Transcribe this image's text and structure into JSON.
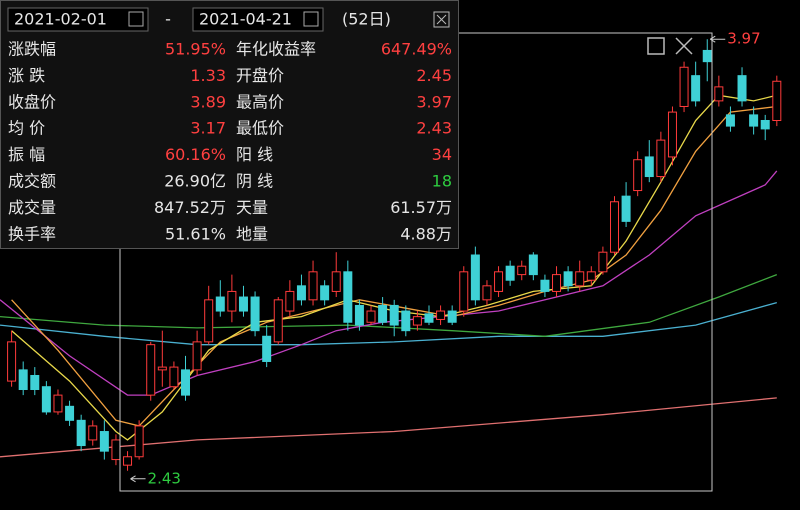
{
  "panel": {
    "start_date": "2021-02-01",
    "separator": "-",
    "end_date": "2021-04-21",
    "days": "(52日)",
    "rows": [
      [
        "涨跌幅",
        "51.95%",
        "年化收益率",
        "647.49%"
      ],
      [
        "涨 跌",
        "1.33",
        "开盘价",
        "2.45"
      ],
      [
        "收盘价",
        "3.89",
        "最高价",
        "3.97"
      ],
      [
        "均 价",
        "3.17",
        "最低价",
        "2.43"
      ],
      [
        "振 幅",
        "60.16%",
        "阳 线",
        "34"
      ],
      [
        "成交额",
        "26.90亿",
        "阴 线",
        "18"
      ],
      [
        "成交量",
        "847.52万",
        "天量",
        "61.57万"
      ],
      [
        "换手率",
        "51.61%",
        "地量",
        "4.88万"
      ]
    ],
    "value_colors": [
      [
        "#ff4040",
        "#ff4040"
      ],
      [
        "#ff4040",
        "#ff4040"
      ],
      [
        "#ff4040",
        "#ff4040"
      ],
      [
        "#ff4040",
        "#ff4040"
      ],
      [
        "#ff4040",
        "#ff4040"
      ],
      [
        "#e6e6e6",
        "#2ecc40"
      ],
      [
        "#e6e6e6",
        "#e6e6e6"
      ],
      [
        "#e6e6e6",
        "#e6e6e6"
      ]
    ]
  },
  "chart_data": {
    "type": "candlestick",
    "up_color": "#ff3b3b",
    "down_color": "#3fd1d6",
    "xlim": [
      -1,
      68
    ],
    "ylim": [
      2.29,
      4.11
    ],
    "open": [
      2.75,
      2.79,
      2.77,
      2.73,
      2.64,
      2.66,
      2.61,
      2.54,
      2.57,
      2.47,
      2.45,
      2.48,
      2.7,
      2.79,
      2.73,
      2.79,
      2.79,
      2.89,
      3.05,
      3.0,
      3.05,
      3.05,
      2.91,
      2.89,
      3.0,
      3.09,
      3.04,
      3.09,
      3.07,
      3.14,
      3.02,
      2.96,
      3.02,
      3.02,
      3.0,
      2.95,
      2.99,
      2.97,
      3.0,
      3.0,
      3.2,
      3.04,
      3.07,
      3.16,
      3.13,
      3.2,
      3.11,
      3.07,
      3.14,
      3.09,
      3.11,
      3.14,
      3.21,
      3.41,
      3.43,
      3.55,
      3.48,
      3.55,
      3.73,
      3.84,
      3.93,
      3.75,
      3.7,
      3.84,
      3.7,
      3.68,
      3.68
    ],
    "high": [
      2.93,
      2.82,
      2.8,
      2.75,
      2.72,
      2.68,
      2.63,
      2.61,
      2.61,
      2.56,
      2.5,
      2.61,
      2.89,
      2.93,
      2.82,
      2.84,
      2.93,
      3.09,
      3.11,
      3.13,
      3.09,
      3.07,
      2.95,
      3.05,
      3.11,
      3.13,
      3.18,
      3.11,
      3.21,
      3.18,
      3.04,
      3.02,
      3.05,
      3.04,
      3.02,
      3.0,
      3.02,
      3.02,
      3.02,
      3.16,
      3.23,
      3.11,
      3.16,
      3.18,
      3.18,
      3.21,
      3.13,
      3.16,
      3.16,
      3.18,
      3.16,
      3.23,
      3.41,
      3.46,
      3.57,
      3.61,
      3.64,
      3.73,
      3.89,
      3.89,
      3.97,
      3.84,
      3.73,
      3.87,
      3.73,
      3.7,
      3.84
    ],
    "low": [
      2.73,
      2.7,
      2.7,
      2.63,
      2.63,
      2.59,
      2.5,
      2.52,
      2.47,
      2.45,
      2.43,
      2.47,
      2.68,
      2.73,
      2.72,
      2.68,
      2.77,
      2.88,
      2.98,
      2.96,
      2.98,
      2.91,
      2.8,
      2.88,
      2.98,
      3.02,
      3.02,
      3.02,
      3.05,
      2.93,
      2.93,
      2.95,
      2.95,
      2.91,
      2.91,
      2.93,
      2.95,
      2.95,
      2.95,
      2.98,
      3.02,
      3.02,
      3.05,
      3.09,
      3.11,
      3.11,
      3.05,
      3.05,
      3.07,
      3.07,
      3.09,
      3.13,
      3.2,
      3.3,
      3.41,
      3.46,
      3.46,
      3.52,
      3.71,
      3.73,
      3.82,
      3.73,
      3.64,
      3.73,
      3.63,
      3.61,
      3.66
    ],
    "close": [
      2.89,
      2.72,
      2.72,
      2.64,
      2.7,
      2.61,
      2.52,
      2.59,
      2.5,
      2.54,
      2.48,
      2.59,
      2.88,
      2.8,
      2.8,
      2.7,
      2.89,
      3.04,
      3.0,
      3.07,
      3.0,
      2.93,
      2.82,
      3.04,
      3.07,
      3.04,
      3.14,
      3.04,
      3.14,
      2.96,
      2.95,
      3.0,
      2.96,
      2.95,
      2.93,
      2.98,
      2.96,
      3.0,
      2.96,
      3.14,
      3.04,
      3.09,
      3.14,
      3.11,
      3.16,
      3.13,
      3.07,
      3.13,
      3.09,
      3.14,
      3.14,
      3.21,
      3.39,
      3.32,
      3.54,
      3.48,
      3.61,
      3.71,
      3.87,
      3.75,
      3.89,
      3.8,
      3.66,
      3.75,
      3.66,
      3.65,
      3.82
    ],
    "lines": [
      {
        "color": "#e07070",
        "x": [
          -1,
          16,
          33,
          51,
          66
        ],
        "values": [
          2.48,
          2.54,
          2.57,
          2.63,
          2.69
        ]
      },
      {
        "color": "#4ab0d0",
        "x": [
          -1,
          8,
          16,
          25,
          33,
          42,
          51,
          59,
          66
        ],
        "values": [
          2.95,
          2.91,
          2.88,
          2.88,
          2.89,
          2.91,
          2.91,
          2.95,
          3.03
        ]
      },
      {
        "color": "#3fa83f",
        "x": [
          -1,
          8,
          16,
          29,
          38,
          46,
          55,
          61,
          66
        ],
        "values": [
          2.98,
          2.95,
          2.94,
          2.95,
          2.93,
          2.91,
          2.96,
          3.05,
          3.13
        ]
      },
      {
        "color": "#c040c0",
        "x": [
          -1,
          5,
          10,
          12,
          16,
          21,
          25,
          28,
          32,
          37,
          42,
          47,
          51,
          55,
          59,
          65,
          66
        ],
        "values": [
          3.04,
          2.84,
          2.7,
          2.7,
          2.77,
          2.82,
          2.88,
          2.93,
          2.96,
          2.98,
          3.0,
          3.05,
          3.09,
          3.2,
          3.34,
          3.45,
          3.5
        ]
      },
      {
        "color": "#f0a040",
        "x": [
          0,
          4,
          9,
          11,
          14,
          18,
          22,
          26,
          30,
          34,
          38,
          42,
          46,
          50,
          53,
          56,
          59,
          62,
          66
        ],
        "values": [
          3.04,
          2.86,
          2.61,
          2.59,
          2.72,
          2.89,
          2.96,
          3.0,
          3.04,
          3.01,
          2.98,
          3.02,
          3.07,
          3.11,
          3.2,
          3.36,
          3.57,
          3.71,
          3.73
        ]
      },
      {
        "color": "#e8d84a",
        "x": [
          0,
          5,
          9,
          10,
          13,
          17,
          21,
          25,
          29,
          33,
          37,
          41,
          45,
          50,
          53,
          56,
          59,
          61,
          64,
          66
        ],
        "values": [
          2.93,
          2.75,
          2.57,
          2.54,
          2.64,
          2.86,
          2.96,
          2.98,
          3.04,
          3.0,
          2.98,
          3.02,
          3.07,
          3.09,
          3.25,
          3.46,
          3.68,
          3.77,
          3.75,
          3.77
        ]
      }
    ],
    "annotations": [
      {
        "x": 60,
        "value": 3.97,
        "label": "3.97",
        "color": "#ff4040"
      },
      {
        "x": 10,
        "value": 2.43,
        "label": "2.43",
        "color": "#2ecc40"
      }
    ]
  }
}
